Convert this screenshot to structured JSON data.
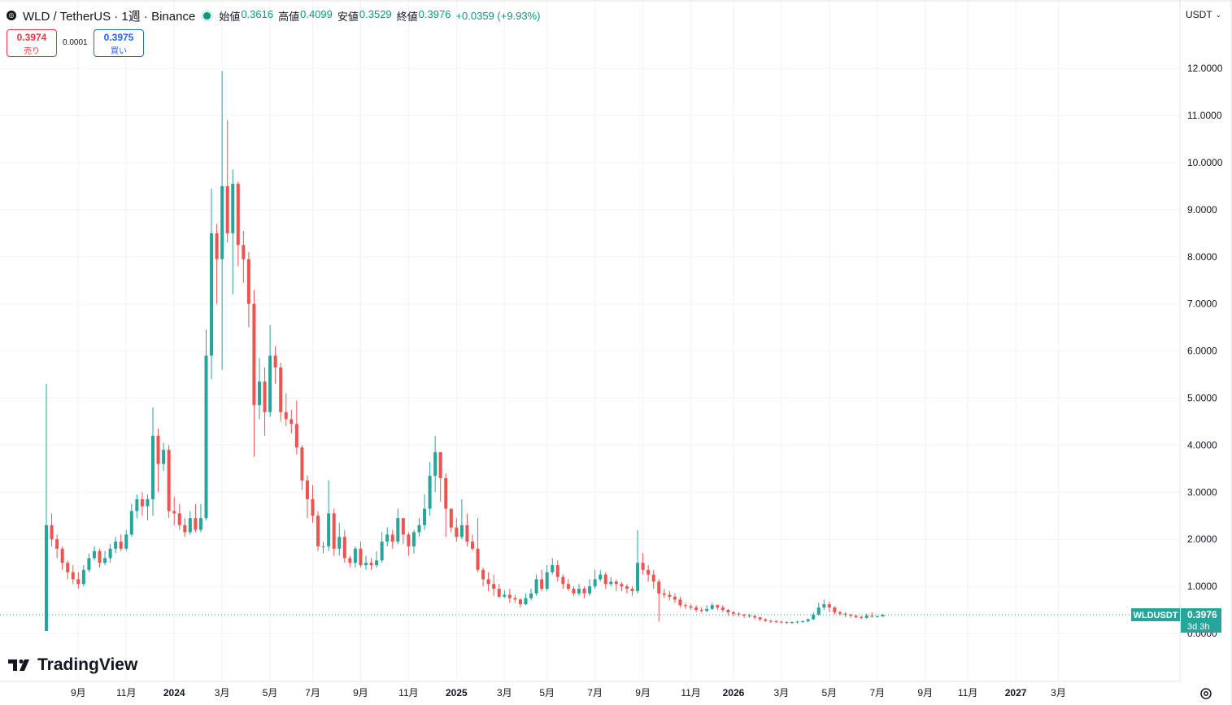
{
  "header": {
    "symbol_icon": "exchange-coin-icon",
    "title": "WLD / TetherUS · 1週 · Binance",
    "open_label": "始値",
    "open": "0.3616",
    "high_label": "高値",
    "high": "0.4099",
    "low_label": "安値",
    "low": "0.3529",
    "close_label": "終値",
    "close": "0.3976",
    "change": "+0.0359 (+9.93%)"
  },
  "trade": {
    "sell_price": "0.3974",
    "sell_label": "売り",
    "spread": "0.0001",
    "buy_price": "0.3975",
    "buy_label": "買い"
  },
  "currency": {
    "label": "USDT",
    "icon": "chevron-down-icon"
  },
  "price_tag": {
    "symbol": "WLDUSDT",
    "price": "0.3976",
    "countdown": "3d 3h"
  },
  "logo": {
    "text": "TradingView",
    "icon": "tradingview-logo-icon"
  },
  "settings": {
    "icon": "settings-icon"
  },
  "colors": {
    "up": "#26a69a",
    "down": "#ef5350",
    "grid": "#f0f3fa",
    "tag": "#26a69a"
  },
  "chart_data": {
    "type": "candlestick",
    "ylim": [
      -0.3,
      12.2
    ],
    "y_ticks": [
      "0.0000",
      "1.0000",
      "2.0000",
      "3.0000",
      "4.0000",
      "5.0000",
      "6.0000",
      "7.0000",
      "8.0000",
      "9.0000",
      "10.0000",
      "11.0000",
      "12.0000"
    ],
    "y_tick_values": [
      0,
      1,
      2,
      3,
      4,
      5,
      6,
      7,
      8,
      9,
      10,
      11,
      12
    ],
    "x_ticks": [
      {
        "label": "9月",
        "week": 6,
        "bold": false
      },
      {
        "label": "11月",
        "week": 15,
        "bold": false
      },
      {
        "label": "2024",
        "week": 24,
        "bold": true
      },
      {
        "label": "3月",
        "week": 33,
        "bold": false
      },
      {
        "label": "5月",
        "week": 42,
        "bold": false
      },
      {
        "label": "7月",
        "week": 50,
        "bold": false
      },
      {
        "label": "9月",
        "week": 59,
        "bold": false
      },
      {
        "label": "11月",
        "week": 68,
        "bold": false
      },
      {
        "label": "2025",
        "week": 77,
        "bold": true
      },
      {
        "label": "3月",
        "week": 86,
        "bold": false
      },
      {
        "label": "5月",
        "week": 94,
        "bold": false
      },
      {
        "label": "7月",
        "week": 103,
        "bold": false
      },
      {
        "label": "9月",
        "week": 112,
        "bold": false
      },
      {
        "label": "11月",
        "week": 121,
        "bold": false
      },
      {
        "label": "2026",
        "week": 129,
        "bold": true
      },
      {
        "label": "3月",
        "week": 138,
        "bold": false
      },
      {
        "label": "5月",
        "week": 147,
        "bold": false
      },
      {
        "label": "7月",
        "week": 156,
        "bold": false
      },
      {
        "label": "9月",
        "week": 165,
        "bold": false
      },
      {
        "label": "11月",
        "week": 173,
        "bold": false
      },
      {
        "label": "2027",
        "week": 182,
        "bold": true
      },
      {
        "label": "3月",
        "week": 190,
        "bold": false
      }
    ],
    "candles": [
      [
        0.05,
        2.3,
        5.3,
        0.1
      ],
      [
        2.3,
        2.0,
        2.55,
        1.85
      ],
      [
        2.0,
        1.8,
        2.1,
        1.6
      ],
      [
        1.8,
        1.5,
        1.85,
        1.35
      ],
      [
        1.5,
        1.3,
        1.55,
        1.15
      ],
      [
        1.3,
        1.15,
        1.45,
        1.05
      ],
      [
        1.15,
        1.05,
        1.3,
        0.95
      ],
      [
        1.05,
        1.35,
        1.45,
        1.0
      ],
      [
        1.35,
        1.6,
        1.7,
        1.3
      ],
      [
        1.6,
        1.75,
        1.85,
        1.55
      ],
      [
        1.75,
        1.5,
        1.8,
        1.4
      ],
      [
        1.5,
        1.6,
        1.75,
        1.45
      ],
      [
        1.6,
        1.8,
        1.9,
        1.5
      ],
      [
        1.8,
        1.95,
        2.05,
        1.7
      ],
      [
        1.95,
        1.8,
        2.1,
        1.75
      ],
      [
        1.8,
        2.1,
        2.2,
        1.75
      ],
      [
        2.1,
        2.6,
        2.75,
        2.05
      ],
      [
        2.6,
        2.85,
        2.95,
        2.45
      ],
      [
        2.85,
        2.7,
        3.0,
        2.5
      ],
      [
        2.7,
        2.85,
        2.95,
        2.4
      ],
      [
        2.85,
        4.2,
        4.8,
        2.5
      ],
      [
        4.2,
        3.6,
        4.35,
        3.0
      ],
      [
        3.6,
        3.9,
        4.05,
        3.45
      ],
      [
        3.9,
        2.6,
        4.0,
        2.45
      ],
      [
        2.6,
        2.55,
        2.9,
        2.3
      ],
      [
        2.55,
        2.3,
        2.75,
        2.2
      ],
      [
        2.3,
        2.15,
        2.45,
        2.05
      ],
      [
        2.15,
        2.45,
        2.6,
        2.1
      ],
      [
        2.45,
        2.2,
        2.75,
        2.15
      ],
      [
        2.2,
        2.45,
        2.75,
        2.15
      ],
      [
        2.45,
        5.9,
        6.45,
        2.4
      ],
      [
        5.9,
        8.5,
        9.45,
        5.4
      ],
      [
        8.5,
        7.95,
        8.7,
        7.0
      ],
      [
        7.95,
        9.5,
        11.95,
        5.6
      ],
      [
        9.5,
        8.5,
        10.9,
        8.3
      ],
      [
        8.5,
        9.55,
        9.85,
        7.2
      ],
      [
        9.55,
        8.25,
        9.6,
        7.8
      ],
      [
        8.25,
        7.95,
        8.55,
        7.45
      ],
      [
        7.95,
        7.0,
        8.1,
        6.5
      ],
      [
        7.0,
        4.85,
        7.3,
        3.75
      ],
      [
        4.85,
        5.35,
        5.85,
        4.55
      ],
      [
        5.35,
        4.7,
        5.65,
        4.2
      ],
      [
        4.7,
        5.9,
        6.55,
        4.6
      ],
      [
        5.9,
        5.65,
        6.1,
        5.3
      ],
      [
        5.65,
        4.7,
        5.75,
        4.5
      ],
      [
        4.7,
        4.55,
        5.1,
        4.4
      ],
      [
        4.55,
        4.45,
        4.75,
        4.25
      ],
      [
        4.45,
        3.95,
        4.95,
        3.8
      ],
      [
        3.95,
        3.25,
        4.0,
        3.05
      ],
      [
        3.25,
        2.85,
        3.35,
        2.45
      ],
      [
        2.85,
        2.5,
        3.15,
        2.35
      ],
      [
        2.5,
        1.85,
        2.6,
        1.75
      ],
      [
        1.85,
        1.85,
        1.95,
        1.7
      ],
      [
        1.85,
        2.55,
        3.25,
        1.75
      ],
      [
        2.55,
        1.8,
        2.65,
        1.65
      ],
      [
        1.8,
        2.05,
        2.35,
        1.65
      ],
      [
        2.05,
        1.6,
        2.2,
        1.5
      ],
      [
        1.6,
        1.5,
        1.65,
        1.4
      ],
      [
        1.5,
        1.8,
        1.85,
        1.4
      ],
      [
        1.8,
        1.45,
        1.95,
        1.4
      ],
      [
        1.45,
        1.5,
        1.65,
        1.35
      ],
      [
        1.5,
        1.45,
        1.6,
        1.35
      ],
      [
        1.45,
        1.55,
        1.75,
        1.4
      ],
      [
        1.55,
        1.95,
        2.15,
        1.5
      ],
      [
        1.95,
        2.1,
        2.25,
        1.85
      ],
      [
        2.1,
        1.95,
        2.2,
        1.8
      ],
      [
        1.95,
        2.45,
        2.65,
        1.9
      ],
      [
        2.45,
        2.1,
        2.45,
        1.9
      ],
      [
        2.1,
        1.85,
        2.15,
        1.65
      ],
      [
        1.85,
        2.15,
        2.2,
        1.7
      ],
      [
        2.15,
        2.3,
        2.45,
        2.05
      ],
      [
        2.3,
        2.65,
        2.95,
        2.2
      ],
      [
        2.65,
        3.35,
        3.65,
        2.5
      ],
      [
        3.35,
        3.85,
        4.2,
        3.0
      ],
      [
        3.85,
        3.3,
        3.85,
        2.8
      ],
      [
        3.3,
        2.65,
        3.4,
        2.05
      ],
      [
        2.65,
        2.25,
        2.65,
        2.15
      ],
      [
        2.25,
        2.05,
        2.45,
        1.95
      ],
      [
        2.05,
        2.3,
        2.85,
        2.0
      ],
      [
        2.3,
        1.95,
        2.55,
        1.85
      ],
      [
        1.95,
        1.8,
        2.1,
        1.75
      ],
      [
        1.8,
        1.35,
        2.45,
        1.3
      ],
      [
        1.35,
        1.15,
        1.4,
        1.0
      ],
      [
        1.15,
        1.05,
        1.3,
        0.9
      ],
      [
        1.05,
        0.95,
        1.25,
        0.8
      ],
      [
        0.95,
        0.78,
        1.05,
        0.75
      ],
      [
        0.78,
        0.82,
        0.92,
        0.75
      ],
      [
        0.82,
        0.75,
        0.95,
        0.65
      ],
      [
        0.75,
        0.72,
        0.82,
        0.65
      ],
      [
        0.72,
        0.62,
        0.75,
        0.55
      ],
      [
        0.62,
        0.75,
        0.85,
        0.6
      ],
      [
        0.75,
        0.85,
        0.95,
        0.7
      ],
      [
        0.85,
        1.15,
        1.25,
        0.8
      ],
      [
        1.15,
        0.95,
        1.35,
        0.9
      ],
      [
        0.95,
        1.3,
        1.45,
        0.9
      ],
      [
        1.3,
        1.45,
        1.6,
        1.25
      ],
      [
        1.45,
        1.2,
        1.55,
        1.1
      ],
      [
        1.2,
        1.05,
        1.25,
        0.95
      ],
      [
        1.05,
        0.95,
        1.15,
        0.9
      ],
      [
        0.95,
        0.85,
        1.0,
        0.8
      ],
      [
        0.85,
        0.95,
        1.05,
        0.8
      ],
      [
        0.95,
        0.85,
        1.0,
        0.75
      ],
      [
        0.85,
        1.0,
        1.15,
        0.8
      ],
      [
        1.0,
        1.15,
        1.35,
        0.95
      ],
      [
        1.15,
        1.25,
        1.35,
        1.1
      ],
      [
        1.25,
        1.05,
        1.3,
        0.95
      ],
      [
        1.05,
        1.1,
        1.2,
        1.0
      ],
      [
        1.1,
        1.05,
        1.15,
        0.9
      ],
      [
        1.05,
        1.0,
        1.1,
        0.9
      ],
      [
        1.0,
        0.95,
        1.05,
        0.85
      ],
      [
        0.95,
        0.9,
        1.0,
        0.8
      ],
      [
        0.9,
        1.5,
        2.2,
        0.85
      ],
      [
        1.5,
        1.35,
        1.7,
        1.25
      ],
      [
        1.35,
        1.25,
        1.45,
        1.1
      ],
      [
        1.25,
        1.1,
        1.35,
        0.95
      ],
      [
        1.1,
        0.85,
        1.15,
        0.25
      ],
      [
        0.85,
        0.82,
        0.95,
        0.75
      ],
      [
        0.82,
        0.78,
        0.9,
        0.7
      ],
      [
        0.78,
        0.72,
        0.85,
        0.65
      ],
      [
        0.72,
        0.6,
        0.78,
        0.55
      ],
      [
        0.6,
        0.58,
        0.65,
        0.52
      ],
      [
        0.58,
        0.55,
        0.62,
        0.5
      ],
      [
        0.55,
        0.5,
        0.6,
        0.45
      ],
      [
        0.5,
        0.48,
        0.55,
        0.44
      ],
      [
        0.48,
        0.52,
        0.6,
        0.45
      ],
      [
        0.52,
        0.6,
        0.65,
        0.5
      ],
      [
        0.6,
        0.55,
        0.62,
        0.5
      ],
      [
        0.55,
        0.5,
        0.6,
        0.45
      ],
      [
        0.5,
        0.45,
        0.52,
        0.38
      ],
      [
        0.45,
        0.42,
        0.48,
        0.36
      ],
      [
        0.42,
        0.4,
        0.45,
        0.36
      ],
      [
        0.4,
        0.38,
        0.42,
        0.33
      ],
      [
        0.38,
        0.37,
        0.41,
        0.33
      ],
      [
        0.37,
        0.34,
        0.39,
        0.3
      ],
      [
        0.34,
        0.3,
        0.36,
        0.26
      ],
      [
        0.3,
        0.27,
        0.32,
        0.24
      ],
      [
        0.27,
        0.26,
        0.29,
        0.22
      ],
      [
        0.26,
        0.25,
        0.28,
        0.22
      ],
      [
        0.25,
        0.24,
        0.27,
        0.21
      ],
      [
        0.24,
        0.23,
        0.26,
        0.2
      ],
      [
        0.23,
        0.24,
        0.26,
        0.2
      ],
      [
        0.24,
        0.25,
        0.27,
        0.21
      ],
      [
        0.25,
        0.26,
        0.28,
        0.22
      ],
      [
        0.26,
        0.3,
        0.32,
        0.24
      ],
      [
        0.3,
        0.4,
        0.45,
        0.28
      ],
      [
        0.4,
        0.55,
        0.65,
        0.38
      ],
      [
        0.55,
        0.62,
        0.72,
        0.5
      ],
      [
        0.62,
        0.55,
        0.68,
        0.45
      ],
      [
        0.55,
        0.45,
        0.58,
        0.4
      ],
      [
        0.45,
        0.42,
        0.48,
        0.38
      ],
      [
        0.42,
        0.4,
        0.45,
        0.35
      ],
      [
        0.4,
        0.38,
        0.42,
        0.33
      ],
      [
        0.38,
        0.35,
        0.4,
        0.32
      ],
      [
        0.35,
        0.33,
        0.38,
        0.3
      ],
      [
        0.33,
        0.38,
        0.42,
        0.31
      ],
      [
        0.38,
        0.36,
        0.45,
        0.33
      ],
      [
        0.36,
        0.3616,
        0.39,
        0.34
      ],
      [
        0.3616,
        0.3976,
        0.4099,
        0.3529
      ]
    ],
    "last_price": 0.3976
  }
}
